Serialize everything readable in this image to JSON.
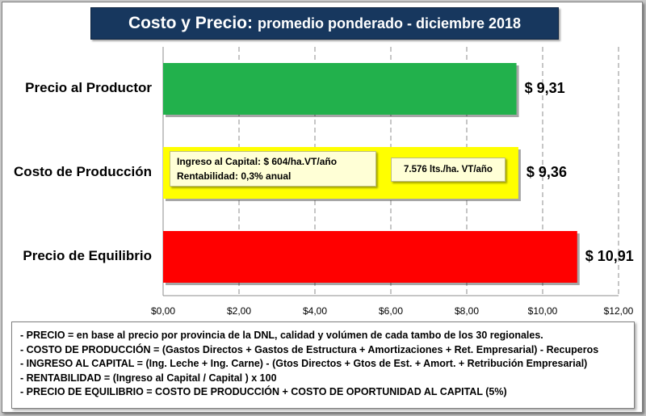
{
  "title": {
    "main": "Costo  y Precio:",
    "sub": "promedio ponderado - diciembre 2018"
  },
  "chart_data": {
    "type": "bar",
    "orientation": "horizontal",
    "categories": [
      "Precio al Productor",
      "Costo de Producción",
      "Precio de Equilibrio"
    ],
    "values": [
      9.31,
      9.36,
      10.91
    ],
    "value_labels": [
      "$ 9,31",
      "$ 9,36",
      "$ 10,91"
    ],
    "bar_colors": [
      "#22b14c",
      "#ffff00",
      "#ff0000"
    ],
    "xlim": [
      0,
      12
    ],
    "x_ticks": [
      0,
      2,
      4,
      6,
      8,
      10,
      12
    ],
    "x_tick_labels": [
      "$0,00",
      "$2,00",
      "$4,00",
      "$6,00",
      "$8,00",
      "$10,00",
      "$12,00"
    ],
    "grid": "vertical dashed"
  },
  "annotations": {
    "capital": [
      "Ingreso al Capital: $ 604/ha.VT/año",
      "Rentabilidad: 0,3% anual"
    ],
    "liters": "7.576 lts./ha. VT/año"
  },
  "notes": [
    "- PRECIO = en base al precio por provincia de la DNL, calidad y volúmen de cada tambo de los 30 regionales.",
    "- COSTO DE PRODUCCIÓN = (Gastos Directos + Gastos de Estructura + Amortizaciones + Ret. Empresarial) - Recuperos",
    "- INGRESO AL CAPITAL = (Ing. Leche + Ing. Carne) - (Gtos Directos + Gtos de Est. + Amort. + Retribución Empresarial)",
    "- RENTABILIDAD = (Ingreso al Capital / Capital ) x 100",
    "- PRECIO DE EQUILIBRIO = COSTO DE PRODUCCIÓN + COSTO DE OPORTUNIDAD AL CAPITAL (5%)"
  ]
}
